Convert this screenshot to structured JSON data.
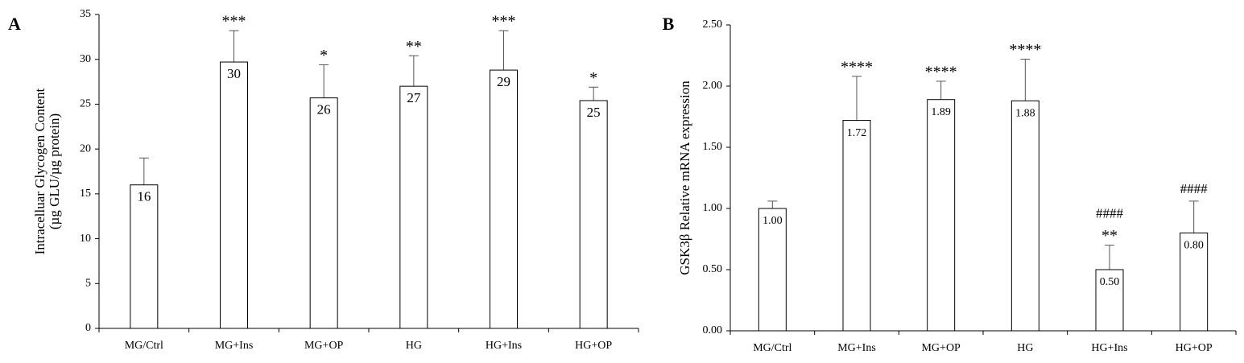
{
  "chart_data": [
    {
      "type": "bar",
      "panel": "A",
      "ylabel": [
        "Intracelluar Glycogen Content",
        "(µg GLU/µg protein)"
      ],
      "categories": [
        "MG/Ctrl",
        "MG+Ins",
        "MG+OP",
        "HG",
        "HG+Ins",
        "HG+OP"
      ],
      "values": [
        16,
        29.7,
        25.7,
        27,
        28.8,
        25.4
      ],
      "value_labels": [
        "16",
        "30",
        "26",
        "27",
        "29",
        "25"
      ],
      "errors": [
        3,
        3.5,
        3.7,
        3.4,
        4.4,
        1.5
      ],
      "annotations": [
        null,
        "***",
        "*",
        "**",
        "***",
        "*"
      ],
      "color": "#ffffff",
      "ylim": [
        0,
        35
      ],
      "yticks": [
        0,
        5,
        10,
        15,
        20,
        25,
        30,
        35
      ],
      "grid": false
    },
    {
      "type": "bar",
      "panel": "B",
      "ylabel": [
        "GSK3β Relative mRNA  expression"
      ],
      "categories": [
        "MG/Ctrl",
        "MG+Ins",
        "MG+OP",
        "HG",
        "HG+Ins",
        "HG+OP"
      ],
      "values": [
        1.0,
        1.72,
        1.89,
        1.88,
        0.5,
        0.8
      ],
      "value_labels": [
        "1.00",
        "1.72",
        "1.89",
        "1.88",
        "0.50",
        "0.80"
      ],
      "errors": [
        0.06,
        0.36,
        0.15,
        0.34,
        0.2,
        0.26
      ],
      "annotations": [
        null,
        "****",
        "****",
        "****",
        "**",
        null
      ],
      "annotations2": [
        null,
        null,
        null,
        null,
        "####",
        "####"
      ],
      "color": "#ffffff",
      "ylim": [
        0,
        2.5
      ],
      "yticks": [
        {
          "value": 0,
          "label": "0.00"
        },
        {
          "value": 0.5,
          "label": "0.50"
        },
        {
          "value": 1,
          "label": "1.00"
        },
        {
          "value": 1.5,
          "label": "1.50"
        },
        {
          "value": 2,
          "label": "2.00"
        },
        {
          "value": 2.5,
          "label": "2.50"
        }
      ],
      "grid": false
    }
  ]
}
